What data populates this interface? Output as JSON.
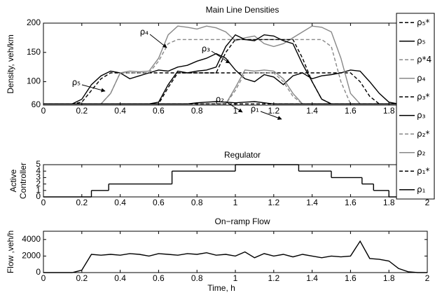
{
  "chart_data": [
    {
      "type": "line",
      "title": "Main Line Densities",
      "ylabel": "Density, veh/km",
      "x": [
        0,
        0.05,
        0.1,
        0.15,
        0.2,
        0.25,
        0.3,
        0.35,
        0.4,
        0.45,
        0.5,
        0.55,
        0.6,
        0.65,
        0.7,
        0.75,
        0.8,
        0.85,
        0.9,
        0.95,
        1,
        1.05,
        1.1,
        1.15,
        1.2,
        1.25,
        1.3,
        1.35,
        1.4,
        1.45,
        1.5,
        1.55,
        1.6,
        1.65,
        1.7,
        1.75,
        1.8,
        1.85,
        1.9,
        1.95,
        2
      ],
      "xlim": [
        0,
        2
      ],
      "xticks": [
        0,
        0.2,
        0.4,
        0.6,
        0.8,
        1,
        1.2,
        1.4,
        1.6,
        1.8,
        2
      ],
      "ylim": [
        60,
        200
      ],
      "yticks": [
        60,
        100,
        150,
        200
      ],
      "legend": "right",
      "annotations": [
        "ρ₄",
        "ρ₃",
        "ρ₅",
        "ρ₂",
        "ρ₁"
      ],
      "series": [
        {
          "name": "ρ₅*",
          "color": "#000000",
          "linestyle": "dashed",
          "values": [
            62,
            62,
            62,
            62,
            65,
            85,
            105,
            115,
            115,
            115,
            115,
            115,
            115,
            115,
            115,
            115,
            115,
            115,
            115,
            115,
            115,
            115,
            115,
            115,
            115,
            115,
            115,
            115,
            115,
            115,
            115,
            115,
            115,
            100,
            75,
            62,
            62,
            62,
            62,
            62,
            62
          ]
        },
        {
          "name": "ρ₅",
          "color": "#000000",
          "linestyle": "solid",
          "values": [
            62,
            62,
            62,
            62,
            70,
            95,
            110,
            118,
            115,
            105,
            110,
            115,
            120,
            118,
            125,
            128,
            135,
            140,
            148,
            140,
            120,
            105,
            100,
            112,
            108,
            95,
            110,
            115,
            105,
            110,
            112,
            115,
            120,
            118,
            100,
            80,
            65,
            62,
            62,
            62,
            62
          ]
        },
        {
          "name": "ρ*4",
          "color": "#888888",
          "linestyle": "dashed",
          "values": [
            62,
            62,
            62,
            62,
            62,
            62,
            62,
            80,
            115,
            115,
            115,
            115,
            135,
            165,
            172,
            172,
            172,
            172,
            172,
            172,
            172,
            172,
            172,
            172,
            172,
            172,
            172,
            172,
            172,
            172,
            160,
            100,
            62,
            62,
            62,
            62,
            62,
            62,
            62,
            62,
            62
          ]
        },
        {
          "name": "ρ₄",
          "color": "#888888",
          "linestyle": "solid",
          "values": [
            62,
            62,
            62,
            62,
            62,
            62,
            62,
            80,
            115,
            118,
            117,
            118,
            140,
            180,
            195,
            193,
            190,
            195,
            192,
            185,
            170,
            175,
            178,
            165,
            160,
            165,
            175,
            185,
            195,
            193,
            185,
            140,
            80,
            62,
            62,
            62,
            62,
            62,
            62,
            62,
            62
          ]
        },
        {
          "name": "ρ₃*",
          "color": "#000000",
          "linestyle": "dashed",
          "values": [
            62,
            62,
            62,
            62,
            62,
            62,
            62,
            62,
            62,
            62,
            62,
            62,
            62,
            90,
            115,
            115,
            115,
            115,
            115,
            150,
            172,
            172,
            172,
            172,
            172,
            172,
            172,
            140,
            100,
            70,
            62,
            62,
            62,
            62,
            62,
            62,
            62,
            62,
            62,
            62,
            62
          ]
        },
        {
          "name": "ρ₃",
          "color": "#000000",
          "linestyle": "solid",
          "values": [
            62,
            62,
            62,
            62,
            62,
            62,
            62,
            62,
            62,
            62,
            62,
            62,
            65,
            95,
            118,
            115,
            118,
            120,
            125,
            160,
            180,
            172,
            170,
            180,
            178,
            170,
            165,
            130,
            100,
            70,
            62,
            62,
            62,
            62,
            62,
            62,
            62,
            62,
            62,
            62,
            62
          ]
        },
        {
          "name": "ρ₂*",
          "color": "#888888",
          "linestyle": "dashed",
          "values": [
            62,
            62,
            62,
            62,
            62,
            62,
            62,
            62,
            62,
            62,
            62,
            62,
            62,
            62,
            62,
            62,
            62,
            62,
            62,
            62,
            85,
            115,
            115,
            115,
            115,
            100,
            75,
            62,
            62,
            62,
            62,
            62,
            62,
            62,
            62,
            62,
            62,
            62,
            62,
            62,
            62
          ]
        },
        {
          "name": "ρ₂",
          "color": "#888888",
          "linestyle": "solid",
          "values": [
            62,
            62,
            62,
            62,
            62,
            62,
            62,
            62,
            62,
            62,
            62,
            62,
            62,
            62,
            62,
            62,
            62,
            62,
            62,
            62,
            90,
            120,
            118,
            120,
            118,
            105,
            80,
            62,
            62,
            62,
            62,
            62,
            62,
            62,
            62,
            62,
            62,
            62,
            62,
            62,
            62
          ]
        },
        {
          "name": "ρ₁*",
          "color": "#000000",
          "linestyle": "dashed",
          "values": [
            62,
            62,
            62,
            62,
            62,
            62,
            62,
            62,
            62,
            62,
            62,
            62,
            62,
            62,
            62,
            62,
            62,
            62,
            62,
            62,
            62,
            62,
            62,
            62,
            62,
            62,
            62,
            62,
            62,
            62,
            62,
            62,
            62,
            62,
            62,
            62,
            62,
            62,
            62,
            62,
            62
          ]
        },
        {
          "name": "ρ₁",
          "color": "#000000",
          "linestyle": "solid",
          "values": [
            62,
            62,
            62,
            62,
            62,
            62,
            62,
            62,
            62,
            62,
            62,
            62,
            62,
            62,
            62,
            62,
            64,
            65,
            66,
            65,
            64,
            65,
            66,
            64,
            62,
            62,
            62,
            62,
            62,
            62,
            62,
            62,
            62,
            62,
            62,
            62,
            62,
            62,
            62,
            62,
            62
          ]
        }
      ]
    },
    {
      "type": "step",
      "title": "Regulator",
      "ylabel": [
        "Active",
        "Controller"
      ],
      "x": [
        0,
        0.25,
        0.34,
        0.67,
        1,
        1.33,
        1.5,
        1.66,
        1.72,
        1.8
      ],
      "xlim": [
        0,
        2
      ],
      "xticks": [
        0,
        0.2,
        0.4,
        0.6,
        0.8,
        1,
        1.2,
        1.4,
        1.6,
        1.8,
        2
      ],
      "ylim": [
        0,
        5
      ],
      "yticks": [
        0,
        1,
        2,
        3,
        4,
        5
      ],
      "series": [
        {
          "color": "#000000",
          "values": [
            0,
            1,
            2,
            4,
            5,
            4,
            3,
            2,
            1,
            0
          ]
        }
      ]
    },
    {
      "type": "line",
      "title": "On−ramp Flow",
      "ylabel": "Flow ,veh/h",
      "xlabel": "Time, h",
      "x": [
        0,
        0.05,
        0.1,
        0.15,
        0.2,
        0.25,
        0.3,
        0.35,
        0.4,
        0.45,
        0.5,
        0.55,
        0.6,
        0.65,
        0.7,
        0.75,
        0.8,
        0.85,
        0.9,
        0.95,
        1,
        1.05,
        1.1,
        1.15,
        1.2,
        1.25,
        1.3,
        1.35,
        1.4,
        1.45,
        1.5,
        1.55,
        1.6,
        1.65,
        1.7,
        1.75,
        1.8,
        1.85,
        1.9,
        1.95,
        2
      ],
      "xlim": [
        0,
        2
      ],
      "xticks": [
        0,
        0.2,
        0.4,
        0.6,
        0.8,
        1,
        1.2,
        1.4,
        1.6,
        1.8,
        2
      ],
      "ylim": [
        0,
        5000
      ],
      "yticks": [
        0,
        2000,
        4000
      ],
      "series": [
        {
          "color": "#000000",
          "linestyle": "solid",
          "values": [
            0,
            0,
            0,
            0,
            300,
            2200,
            2100,
            2200,
            2100,
            2300,
            2200,
            2000,
            2300,
            2200,
            2100,
            2300,
            2200,
            2400,
            2100,
            2200,
            2000,
            2500,
            1800,
            2300,
            2000,
            2200,
            1900,
            2200,
            2000,
            1800,
            2000,
            1900,
            2000,
            3800,
            1700,
            1600,
            1400,
            500,
            100,
            0,
            0
          ]
        }
      ]
    }
  ]
}
